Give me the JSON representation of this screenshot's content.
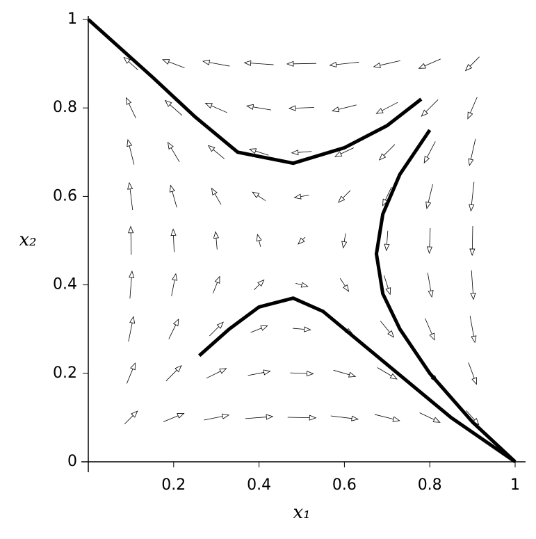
{
  "chart_data": {
    "type": "quiver",
    "xlabel": "x₁",
    "ylabel": "x₂",
    "xlim": [
      0,
      1
    ],
    "ylim": [
      0,
      1
    ],
    "xticks": [
      0.2,
      0.4,
      0.6,
      0.8,
      1
    ],
    "yticks": [
      0,
      0.2,
      0.4,
      0.6,
      0.8,
      1
    ],
    "arrow_color": "#000000",
    "field": {
      "x": [
        0.1,
        0.2,
        0.3,
        0.4,
        0.5,
        0.6,
        0.7,
        0.8,
        0.9
      ],
      "y": [
        0.1,
        0.2,
        0.3,
        0.4,
        0.5,
        0.6,
        0.7,
        0.8,
        0.9
      ],
      "u": [
        [
          34,
          61,
          80,
          91,
          95,
          91,
          80,
          61,
          34
        ],
        [
          25,
          45,
          59,
          67,
          70,
          67,
          59,
          45,
          25
        ],
        [
          16,
          29,
          38,
          43,
          45,
          43,
          38,
          29,
          16
        ],
        [
          7,
          13,
          17,
          19,
          20,
          19,
          17,
          13,
          7
        ],
        [
          -2,
          -3,
          -4,
          -5,
          -5,
          -5,
          -4,
          -3,
          -2
        ],
        [
          -11,
          -19,
          -25,
          -29,
          -30,
          -29,
          -25,
          -19,
          -11
        ],
        [
          -20,
          -35,
          -46,
          -53,
          -55,
          -53,
          -46,
          -35,
          -20
        ],
        [
          -29,
          -51,
          -67,
          -77,
          -80,
          -77,
          -67,
          -51,
          -29
        ],
        [
          -38,
          -67,
          -88,
          -101,
          -105,
          -101,
          -88,
          -67,
          -38
        ]
      ],
      "v": [
        [
          34,
          25,
          16,
          7,
          -2,
          -11,
          -20,
          -29,
          -38
        ],
        [
          61,
          45,
          29,
          13,
          -3,
          -19,
          -35,
          -51,
          -67
        ],
        [
          80,
          59,
          38,
          17,
          -4,
          -25,
          -46,
          -67,
          -88
        ],
        [
          91,
          67,
          43,
          19,
          -5,
          -29,
          -53,
          -77,
          -101
        ],
        [
          95,
          70,
          45,
          20,
          -5,
          -30,
          -55,
          -80,
          -105
        ],
        [
          91,
          67,
          43,
          19,
          -5,
          -29,
          -53,
          -77,
          -101
        ],
        [
          80,
          59,
          38,
          17,
          -4,
          -25,
          -46,
          -67,
          -88
        ],
        [
          61,
          45,
          29,
          13,
          -3,
          -19,
          -35,
          -51,
          -67
        ],
        [
          34,
          25,
          16,
          7,
          -2,
          -11,
          -20,
          -29,
          -38
        ]
      ]
    },
    "series": [
      {
        "color": "#000000",
        "x": [
          0,
          0.15,
          0.25,
          0.35,
          0.48,
          0.6,
          0.7,
          0.78
        ],
        "y": [
          1,
          0.87,
          0.78,
          0.7,
          0.675,
          0.71,
          0.76,
          0.82
        ]
      },
      {
        "color": "#000000",
        "x": [
          0.8,
          0.73,
          0.69,
          0.675,
          0.69,
          0.73,
          0.8,
          0.9,
          1
        ],
        "y": [
          0.75,
          0.65,
          0.56,
          0.47,
          0.38,
          0.3,
          0.2,
          0.09,
          0
        ]
      },
      {
        "color": "#000000",
        "x": [
          0.26,
          0.33,
          0.4,
          0.48,
          0.55,
          0.65,
          0.75,
          0.85,
          1
        ],
        "y": [
          0.24,
          0.3,
          0.35,
          0.37,
          0.34,
          0.26,
          0.18,
          0.1,
          0
        ]
      }
    ]
  }
}
